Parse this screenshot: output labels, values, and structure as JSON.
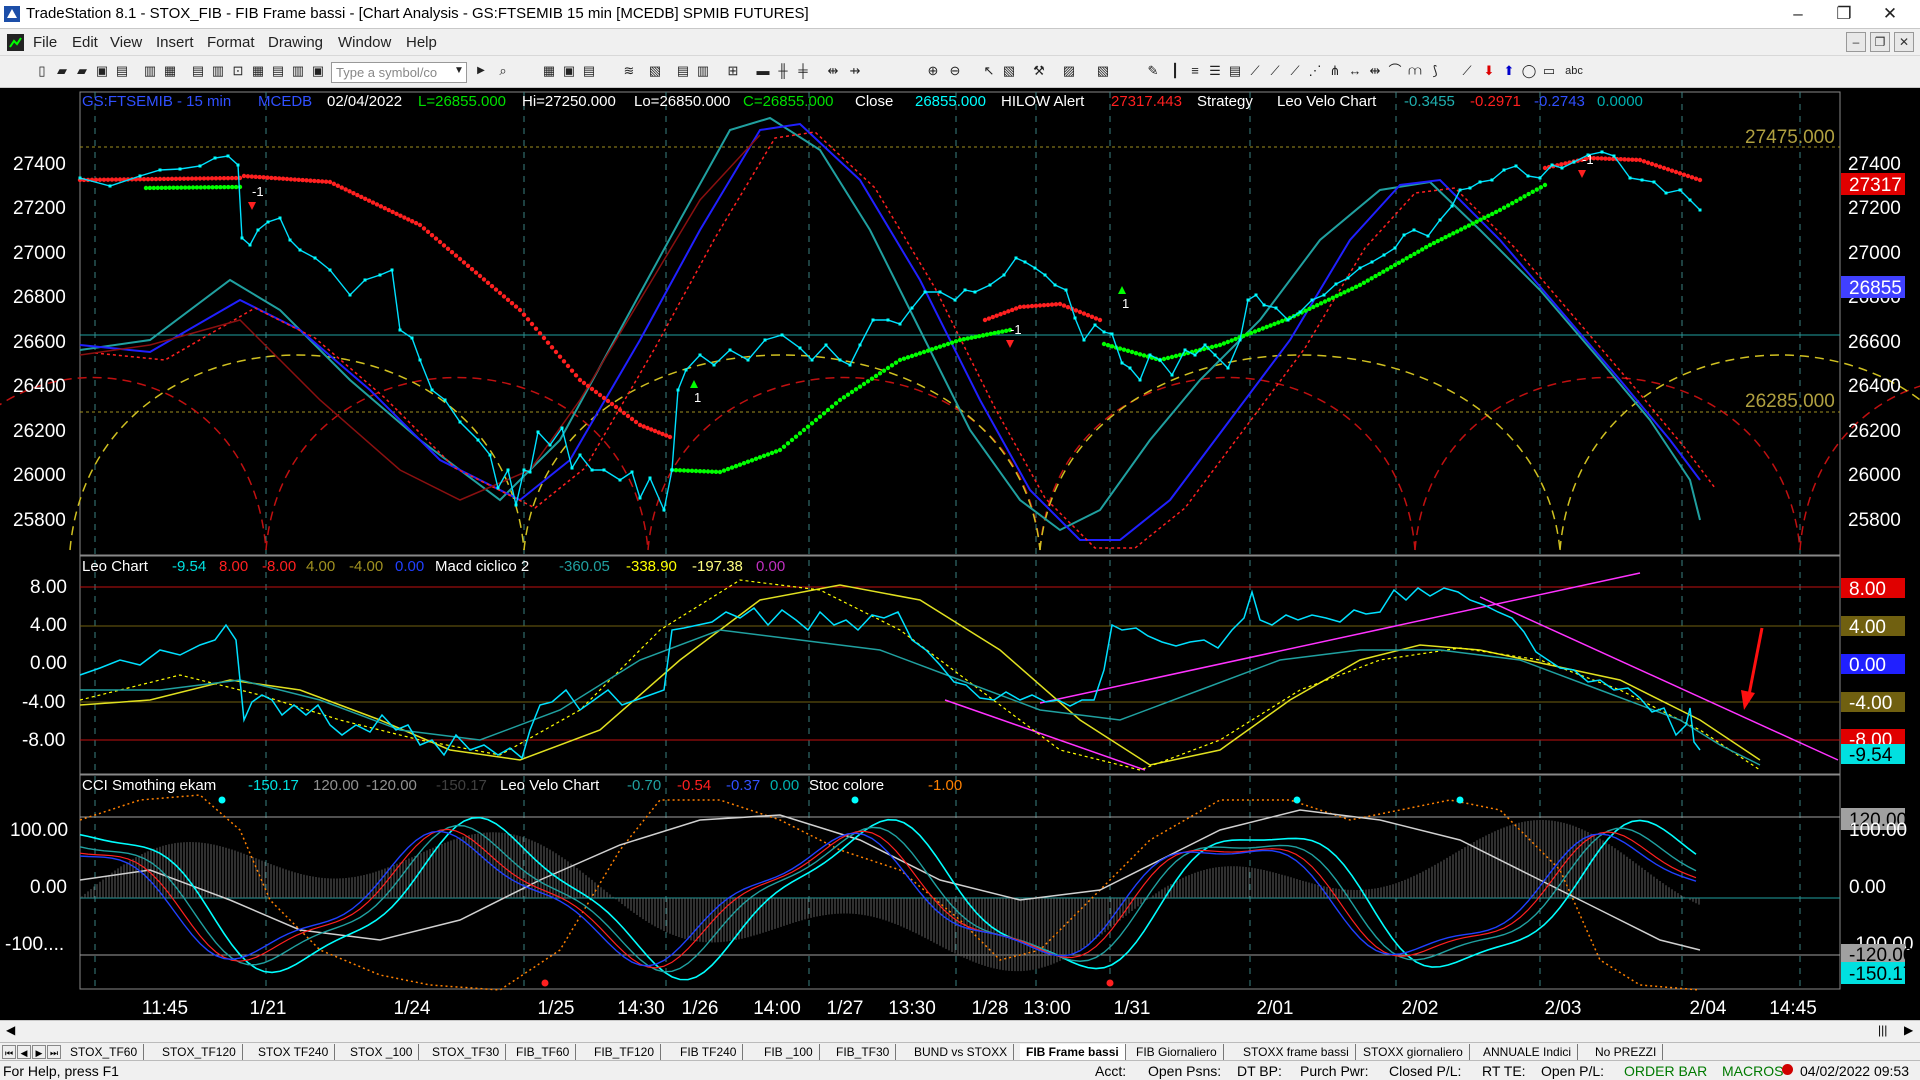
{
  "window": {
    "title": "TradeStation 8.1 - STOX_FIB - FIB Frame bassi - [Chart Analysis - GS:FTSEMIB  15 min  [MCEDB] SPMIB FUTURES]",
    "minimize": "–",
    "restore": "❐",
    "close": "✕"
  },
  "menu": [
    "File",
    "Edit",
    "View",
    "Insert",
    "Format",
    "Drawing",
    "Window",
    "Help"
  ],
  "mdi_controls": [
    "–",
    "❐",
    "✕"
  ],
  "toolbar": {
    "symbol_placeholder": "Type a symbol/co",
    "text_tool": "abc"
  },
  "header": {
    "symbol": "GS:FTSEMIB - 15 min",
    "exchange": "MCEDB",
    "date": "02/04/2022",
    "last": "L=26855.000",
    "high": "Hi=27250.000",
    "low": "Lo=26850.000",
    "close_label": "C=26855.000",
    "close_word": "Close",
    "close_value": "26855.000",
    "hilow": "HILOW Alert",
    "hilow_value": "27317.443",
    "strategy": "Strategy",
    "leo_velo": "Leo Velo Chart",
    "v1": "-0.3455",
    "v2": "-0.2971",
    "v3": "-0.2743",
    "v4": "0.0000"
  },
  "panel1": {
    "yticks": [
      "27400",
      "27200",
      "27000",
      "26800",
      "26600",
      "26400",
      "26200",
      "26000",
      "25800"
    ],
    "fib_high": "27475.000",
    "fib_low": "26285.000",
    "tag_red": "27317",
    "tag_blue": "26855",
    "markers": {
      "minus1": "-1",
      "plus1": "1"
    }
  },
  "panel2": {
    "title": "Leo Chart",
    "vals": [
      "-9.54",
      "8.00",
      "-8.00",
      "4.00",
      "-4.00",
      "0.00"
    ],
    "macd": "Macd ciclico 2",
    "macd_vals": [
      "-360.05",
      "-338.90",
      "-197.38",
      "0.00"
    ],
    "yticks": [
      "8.00",
      "4.00",
      "0.00",
      "-4.00",
      "-8.00"
    ],
    "tags": [
      "8.00",
      "4.00",
      "0.00",
      "-4.00",
      "-8.00",
      "-9.54"
    ]
  },
  "panel3": {
    "title": "CCI Smothing ekam",
    "vals": [
      "-150.17",
      "120.00",
      "-120.00",
      "-150.17"
    ],
    "leo": "Leo Velo Chart",
    "leo_vals": [
      "-0.70",
      "-0.54",
      "-0.37",
      "0.00"
    ],
    "stoc": "Stoc colore",
    "stoc_val": "-1.00",
    "yticks": [
      "100.00",
      "0.00",
      "-100...."
    ],
    "tags": [
      "120.00",
      "100.00",
      "0.00",
      "-100.00",
      "-120.00",
      "-150.17"
    ]
  },
  "xaxis": [
    "11:45",
    "1/21",
    "1/24",
    "1/25",
    "14:30",
    "1/26",
    "14:00",
    "1/27",
    "13:30",
    "1/28",
    "13:00",
    "1/31",
    "2/01",
    "2/02",
    "2/03",
    "2/04",
    "14:45"
  ],
  "tabs": [
    "STOX_TF60",
    "STOX_TF120",
    "STOX TF240",
    "STOX _100",
    "STOX_TF30",
    "FIB_TF60",
    "FIB_TF120",
    "FIB TF240",
    "FIB _100",
    "FIB_TF30",
    "BUND vs STOXX",
    "FIB Frame bassi",
    "FIB Giornaliero",
    "STOXX frame bassi",
    "STOXX giornaliero",
    "ANNUALE Indici",
    "No PREZZI"
  ],
  "active_tab": "FIB Frame bassi",
  "status": {
    "help": "For Help, press F1",
    "acct": "Acct:",
    "open_psns": "Open Psns:",
    "dt_bp": "DT BP:",
    "purch": "Purch Pwr:",
    "closed": "Closed P/L:",
    "rt_te": "RT TE:",
    "open_pl": "Open P/L:",
    "orderbar": "ORDER BAR",
    "macros": "MACROS",
    "datetime": "04/02/2022 09:53"
  },
  "colors": {
    "cyan": "#00ffff",
    "red": "#ff0000",
    "green": "#00ff00",
    "yellow": "#ffff00",
    "blue": "#2020ff",
    "magenta": "#ff33ff",
    "teal": "#20a0a0",
    "olive": "#a09020"
  }
}
